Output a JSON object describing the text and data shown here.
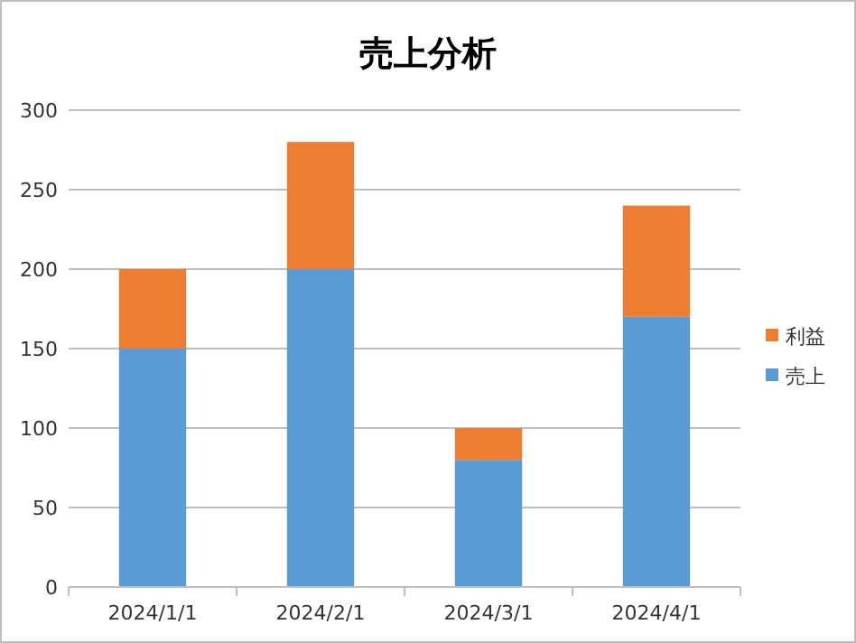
{
  "chart_data": {
    "type": "bar",
    "title": "売上分析",
    "categories": [
      "2024/1/1",
      "2024/2/1",
      "2024/3/1",
      "2024/4/1"
    ],
    "stacked": true,
    "series": [
      {
        "name": "売上",
        "color": "#5b9bd5",
        "values": [
          150,
          200,
          80,
          170
        ]
      },
      {
        "name": "利益",
        "color": "#ed7d31",
        "values": [
          50,
          80,
          20,
          70
        ]
      }
    ],
    "ylim": [
      0,
      300
    ],
    "yticks": [
      0,
      50,
      100,
      150,
      200,
      250,
      300
    ],
    "grid": "y",
    "legend": "right"
  }
}
